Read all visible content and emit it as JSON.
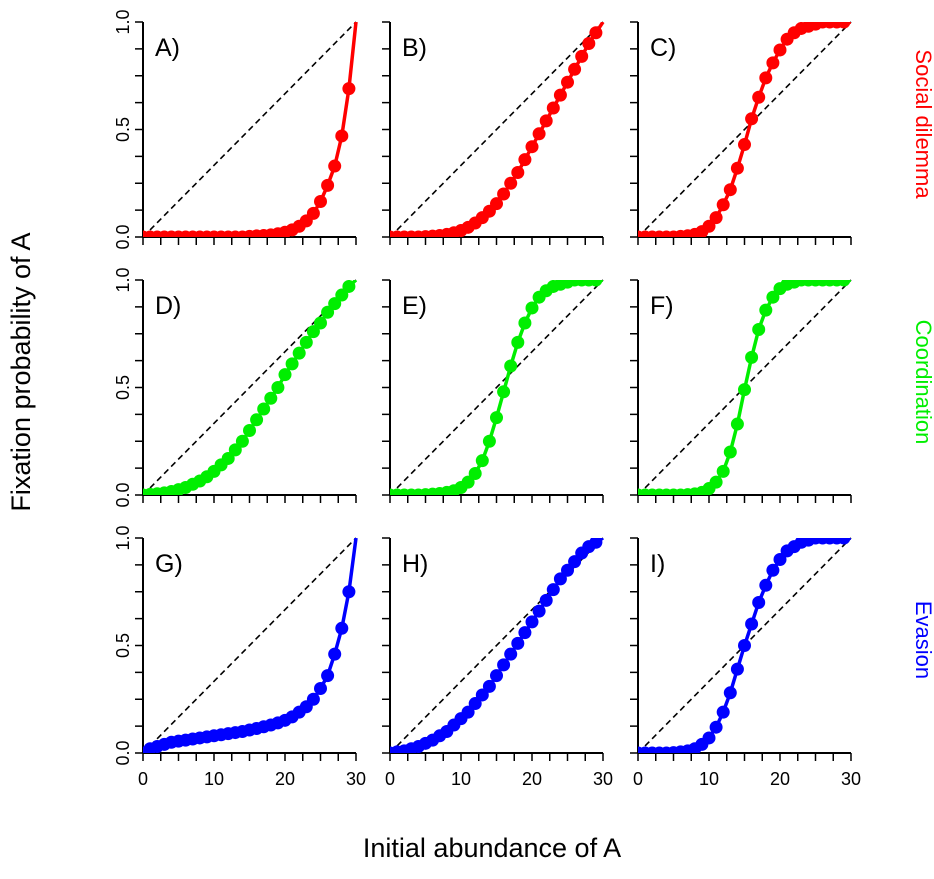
{
  "figure": {
    "ylabel": "Fixation probability of A",
    "xlabel": "Initial abundance of A",
    "row_labels": [
      {
        "text": "Social dilemma",
        "color": "#ff0000"
      },
      {
        "text": "Coordination",
        "color": "#00ee00"
      },
      {
        "text": "Evasion",
        "color": "#0000ff"
      }
    ]
  },
  "chart_data": [
    {
      "type": "line",
      "panel_label": "A)",
      "color": "#ff0000",
      "xlim": [
        0,
        30
      ],
      "ylim": [
        0,
        1
      ],
      "x_ticks": [
        0,
        10,
        20,
        30
      ],
      "y_ticks": [
        0.0,
        0.5,
        1.0
      ],
      "reference_line": "y = x/30",
      "x": [
        0,
        1,
        2,
        3,
        4,
        5,
        6,
        7,
        8,
        9,
        10,
        11,
        12,
        13,
        14,
        15,
        16,
        17,
        18,
        19,
        20,
        21,
        22,
        23,
        24,
        25,
        26,
        27,
        28,
        29,
        30
      ],
      "y": [
        0,
        0,
        0,
        0,
        0,
        0,
        0,
        0,
        0,
        0,
        0,
        0,
        0,
        0,
        0,
        0.003,
        0.005,
        0.007,
        0.01,
        0.015,
        0.022,
        0.033,
        0.05,
        0.075,
        0.11,
        0.165,
        0.24,
        0.33,
        0.47,
        0.69,
        1.0
      ]
    },
    {
      "type": "line",
      "panel_label": "B)",
      "color": "#ff0000",
      "xlim": [
        0,
        30
      ],
      "ylim": [
        0,
        1
      ],
      "x_ticks": [
        0,
        10,
        20,
        30
      ],
      "y_ticks": [
        0.0,
        0.5,
        1.0
      ],
      "reference_line": "y = x/30",
      "x": [
        0,
        1,
        2,
        3,
        4,
        5,
        6,
        7,
        8,
        9,
        10,
        11,
        12,
        13,
        14,
        15,
        16,
        17,
        18,
        19,
        20,
        21,
        22,
        23,
        24,
        25,
        26,
        27,
        28,
        29,
        30
      ],
      "y": [
        0,
        0,
        0,
        0,
        0,
        0.002,
        0.004,
        0.007,
        0.012,
        0.02,
        0.03,
        0.045,
        0.065,
        0.09,
        0.12,
        0.155,
        0.2,
        0.25,
        0.3,
        0.36,
        0.42,
        0.48,
        0.54,
        0.6,
        0.66,
        0.72,
        0.78,
        0.84,
        0.9,
        0.95,
        1.0
      ]
    },
    {
      "type": "line",
      "panel_label": "C)",
      "color": "#ff0000",
      "xlim": [
        0,
        30
      ],
      "ylim": [
        0,
        1
      ],
      "x_ticks": [
        0,
        10,
        20,
        30
      ],
      "y_ticks": [
        0.0,
        0.5,
        1.0
      ],
      "reference_line": "y = x/30",
      "x": [
        0,
        1,
        2,
        3,
        4,
        5,
        6,
        7,
        8,
        9,
        10,
        11,
        12,
        13,
        14,
        15,
        16,
        17,
        18,
        19,
        20,
        21,
        22,
        23,
        24,
        25,
        26,
        27,
        28,
        29,
        30
      ],
      "y": [
        0,
        0,
        0,
        0,
        0,
        0,
        0.003,
        0.006,
        0.012,
        0.025,
        0.05,
        0.09,
        0.15,
        0.22,
        0.32,
        0.43,
        0.55,
        0.65,
        0.74,
        0.81,
        0.87,
        0.92,
        0.95,
        0.97,
        0.98,
        0.99,
        1.0,
        1.0,
        1.0,
        1.0,
        1.0
      ]
    },
    {
      "type": "line",
      "panel_label": "D)",
      "color": "#00ee00",
      "xlim": [
        0,
        30
      ],
      "ylim": [
        0,
        1
      ],
      "x_ticks": [
        0,
        10,
        20,
        30
      ],
      "y_ticks": [
        0.0,
        0.5,
        1.0
      ],
      "reference_line": "y = x/30",
      "x": [
        0,
        1,
        2,
        3,
        4,
        5,
        6,
        7,
        8,
        9,
        10,
        11,
        12,
        13,
        14,
        15,
        16,
        17,
        18,
        19,
        20,
        21,
        22,
        23,
        24,
        25,
        26,
        27,
        28,
        29,
        30
      ],
      "y": [
        0,
        0.003,
        0.006,
        0.01,
        0.016,
        0.025,
        0.035,
        0.05,
        0.065,
        0.085,
        0.11,
        0.14,
        0.17,
        0.21,
        0.25,
        0.3,
        0.35,
        0.4,
        0.45,
        0.5,
        0.56,
        0.61,
        0.66,
        0.71,
        0.76,
        0.8,
        0.85,
        0.89,
        0.93,
        0.97,
        1.0
      ]
    },
    {
      "type": "line",
      "panel_label": "E)",
      "color": "#00ee00",
      "xlim": [
        0,
        30
      ],
      "ylim": [
        0,
        1
      ],
      "x_ticks": [
        0,
        10,
        20,
        30
      ],
      "y_ticks": [
        0.0,
        0.5,
        1.0
      ],
      "reference_line": "y = x/30",
      "x": [
        0,
        1,
        2,
        3,
        4,
        5,
        6,
        7,
        8,
        9,
        10,
        11,
        12,
        13,
        14,
        15,
        16,
        17,
        18,
        19,
        20,
        21,
        22,
        23,
        24,
        25,
        26,
        27,
        28,
        29,
        30
      ],
      "y": [
        0,
        0,
        0,
        0,
        0,
        0.002,
        0.004,
        0.007,
        0.012,
        0.02,
        0.035,
        0.06,
        0.1,
        0.16,
        0.25,
        0.36,
        0.48,
        0.6,
        0.71,
        0.8,
        0.87,
        0.92,
        0.95,
        0.97,
        0.98,
        0.99,
        1.0,
        1.0,
        1.0,
        1.0,
        1.0
      ]
    },
    {
      "type": "line",
      "panel_label": "F)",
      "color": "#00ee00",
      "xlim": [
        0,
        30
      ],
      "ylim": [
        0,
        1
      ],
      "x_ticks": [
        0,
        10,
        20,
        30
      ],
      "y_ticks": [
        0.0,
        0.5,
        1.0
      ],
      "reference_line": "y = x/30",
      "x": [
        0,
        1,
        2,
        3,
        4,
        5,
        6,
        7,
        8,
        9,
        10,
        11,
        12,
        13,
        14,
        15,
        16,
        17,
        18,
        19,
        20,
        21,
        22,
        23,
        24,
        25,
        26,
        27,
        28,
        29,
        30
      ],
      "y": [
        0,
        0,
        0,
        0,
        0,
        0,
        0,
        0.002,
        0.005,
        0.012,
        0.03,
        0.06,
        0.11,
        0.2,
        0.33,
        0.49,
        0.64,
        0.77,
        0.86,
        0.92,
        0.96,
        0.98,
        0.99,
        1.0,
        1.0,
        1.0,
        1.0,
        1.0,
        1.0,
        1.0,
        1.0
      ]
    },
    {
      "type": "line",
      "panel_label": "G)",
      "color": "#0000ff",
      "xlim": [
        0,
        30
      ],
      "ylim": [
        0,
        1
      ],
      "x_ticks": [
        0,
        10,
        20,
        30
      ],
      "y_ticks": [
        0.0,
        0.5,
        1.0
      ],
      "reference_line": "y = x/30",
      "x": [
        0,
        1,
        2,
        3,
        4,
        5,
        6,
        7,
        8,
        9,
        10,
        11,
        12,
        13,
        14,
        15,
        16,
        17,
        18,
        19,
        20,
        21,
        22,
        23,
        24,
        25,
        26,
        27,
        28,
        29,
        30
      ],
      "y": [
        0,
        0.02,
        0.03,
        0.04,
        0.05,
        0.055,
        0.06,
        0.065,
        0.07,
        0.075,
        0.08,
        0.085,
        0.09,
        0.095,
        0.1,
        0.107,
        0.114,
        0.122,
        0.13,
        0.14,
        0.152,
        0.168,
        0.19,
        0.215,
        0.25,
        0.3,
        0.36,
        0.46,
        0.58,
        0.75,
        1.0
      ]
    },
    {
      "type": "line",
      "panel_label": "H)",
      "color": "#0000ff",
      "xlim": [
        0,
        30
      ],
      "ylim": [
        0,
        1
      ],
      "x_ticks": [
        0,
        10,
        20,
        30
      ],
      "y_ticks": [
        0.0,
        0.5,
        1.0
      ],
      "reference_line": "y = x/30",
      "x": [
        0,
        1,
        2,
        3,
        4,
        5,
        6,
        7,
        8,
        9,
        10,
        11,
        12,
        13,
        14,
        15,
        16,
        17,
        18,
        19,
        20,
        21,
        22,
        23,
        24,
        25,
        26,
        27,
        28,
        29,
        30
      ],
      "y": [
        0,
        0.005,
        0.01,
        0.02,
        0.03,
        0.045,
        0.06,
        0.08,
        0.1,
        0.13,
        0.16,
        0.19,
        0.23,
        0.27,
        0.31,
        0.36,
        0.41,
        0.46,
        0.51,
        0.56,
        0.61,
        0.66,
        0.71,
        0.76,
        0.81,
        0.85,
        0.89,
        0.93,
        0.96,
        0.98,
        1.0
      ]
    },
    {
      "type": "line",
      "panel_label": "I)",
      "color": "#0000ff",
      "xlim": [
        0,
        30
      ],
      "ylim": [
        0,
        1
      ],
      "x_ticks": [
        0,
        10,
        20,
        30
      ],
      "y_ticks": [
        0.0,
        0.5,
        1.0
      ],
      "reference_line": "y = x/30",
      "x": [
        0,
        1,
        2,
        3,
        4,
        5,
        6,
        7,
        8,
        9,
        10,
        11,
        12,
        13,
        14,
        15,
        16,
        17,
        18,
        19,
        20,
        21,
        22,
        23,
        24,
        25,
        26,
        27,
        28,
        29,
        30
      ],
      "y": [
        0,
        0,
        0,
        0,
        0,
        0.002,
        0.005,
        0.01,
        0.02,
        0.04,
        0.07,
        0.12,
        0.19,
        0.28,
        0.39,
        0.5,
        0.6,
        0.7,
        0.78,
        0.85,
        0.9,
        0.94,
        0.96,
        0.98,
        0.99,
        1.0,
        1.0,
        1.0,
        1.0,
        1.0,
        1.0
      ]
    }
  ]
}
